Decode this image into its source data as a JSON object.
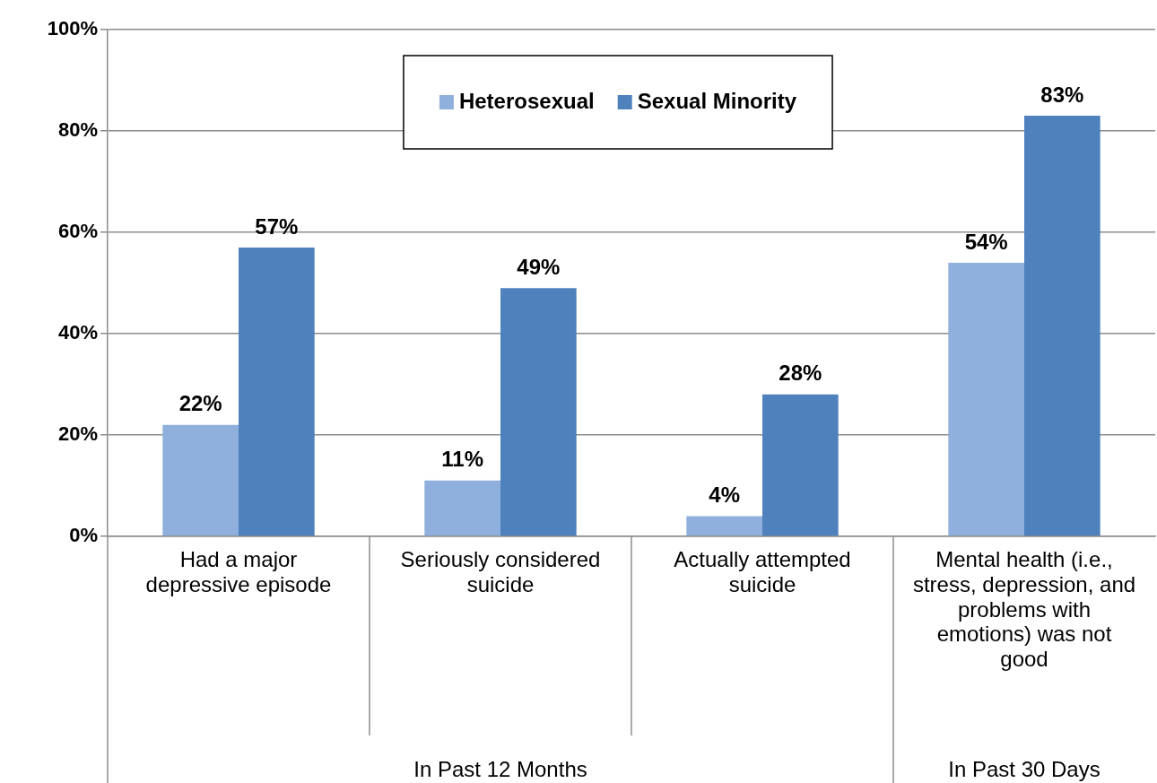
{
  "chart_data": {
    "type": "bar",
    "categories": [
      "Had a major depressive episode",
      "Seriously considered suicide",
      "Actually attempted suicide",
      "Mental health (i.e., stress, depression, and problems with emotions) was not good"
    ],
    "series": [
      {
        "name": "Heterosexual",
        "color": "#8fb0dc",
        "values": [
          22,
          11,
          4,
          54
        ],
        "value_labels": [
          "22%",
          "11%",
          "4%",
          "54%"
        ]
      },
      {
        "name": "Sexual Minority",
        "color": "#4f81bd",
        "values": [
          57,
          49,
          28,
          83
        ],
        "value_labels": [
          "57%",
          "49%",
          "28%",
          "83%"
        ]
      }
    ],
    "ylim": [
      0,
      100
    ],
    "yticks": [
      {
        "value": 0,
        "label": "0%"
      },
      {
        "value": 20,
        "label": "20%"
      },
      {
        "value": 40,
        "label": "40%"
      },
      {
        "value": 60,
        "label": "60%"
      },
      {
        "value": 80,
        "label": "80%"
      },
      {
        "value": 100,
        "label": "100%"
      }
    ],
    "grid": "y",
    "legend": "top",
    "annotations": [
      "In Past 12 Months",
      "In Past 30 Days"
    ]
  }
}
